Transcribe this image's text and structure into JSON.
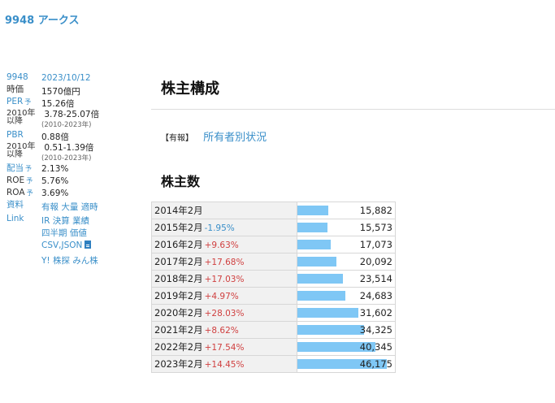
{
  "top_title": "9948 アークス",
  "sidebar": {
    "code": "9948",
    "date": "2023/10/12",
    "market_cap": {
      "label": "時価",
      "value": "1570億円"
    },
    "per": {
      "label": "PER",
      "yo": "予",
      "value": "15.26倍"
    },
    "per_range": {
      "label1": "2010年",
      "label2": "以降",
      "value": "3.78-25.07倍",
      "note": "(2010-2023年)"
    },
    "pbr": {
      "label": "PBR",
      "value": "0.88倍"
    },
    "pbr_range": {
      "label1": "2010年",
      "label2": "以降",
      "value": "0.51-1.39倍",
      "note": "(2010-2023年)"
    },
    "dividend": {
      "label": "配当",
      "yo": "予",
      "value": "2.13%"
    },
    "roe": {
      "label": "ROE",
      "yo": "予",
      "value": "5.76%"
    },
    "roa": {
      "label": "ROA",
      "yo": "予",
      "value": "3.69%"
    },
    "materials": {
      "label": "資料",
      "links": [
        "有報",
        "大量",
        "適時"
      ]
    },
    "link": {
      "label": "Link",
      "row1": [
        "IR",
        "決算",
        "業績"
      ],
      "row2": [
        "四半期",
        "価値"
      ],
      "csv": "CSV,JSON",
      "row4": [
        "Y!",
        "株探",
        "みん株"
      ]
    }
  },
  "main": {
    "heading": "株主構成",
    "source_tag": "【有報】",
    "source_link": "所有者別状況",
    "subheading": "株主数"
  },
  "chart_data": {
    "type": "bar",
    "categories": [
      "2014年2月",
      "2015年2月",
      "2016年2月",
      "2017年2月",
      "2018年2月",
      "2019年2月",
      "2020年2月",
      "2021年2月",
      "2022年2月",
      "2023年2月"
    ],
    "changes": [
      "",
      "-1.95%",
      "+9.63%",
      "+17.68%",
      "+17.03%",
      "+4.97%",
      "+28.03%",
      "+8.62%",
      "+17.54%",
      "+14.45%"
    ],
    "values": [
      15882,
      15573,
      17073,
      20092,
      23514,
      24683,
      31602,
      34325,
      40345,
      46175
    ],
    "labels": [
      "15,882",
      "15,573",
      "17,073",
      "20,092",
      "23,514",
      "24,683",
      "31,602",
      "34,325",
      "40,345",
      "46,175"
    ],
    "bar_color": "#7fc7f5",
    "up_color": "#d04040",
    "down_color": "#3a8fc9"
  }
}
